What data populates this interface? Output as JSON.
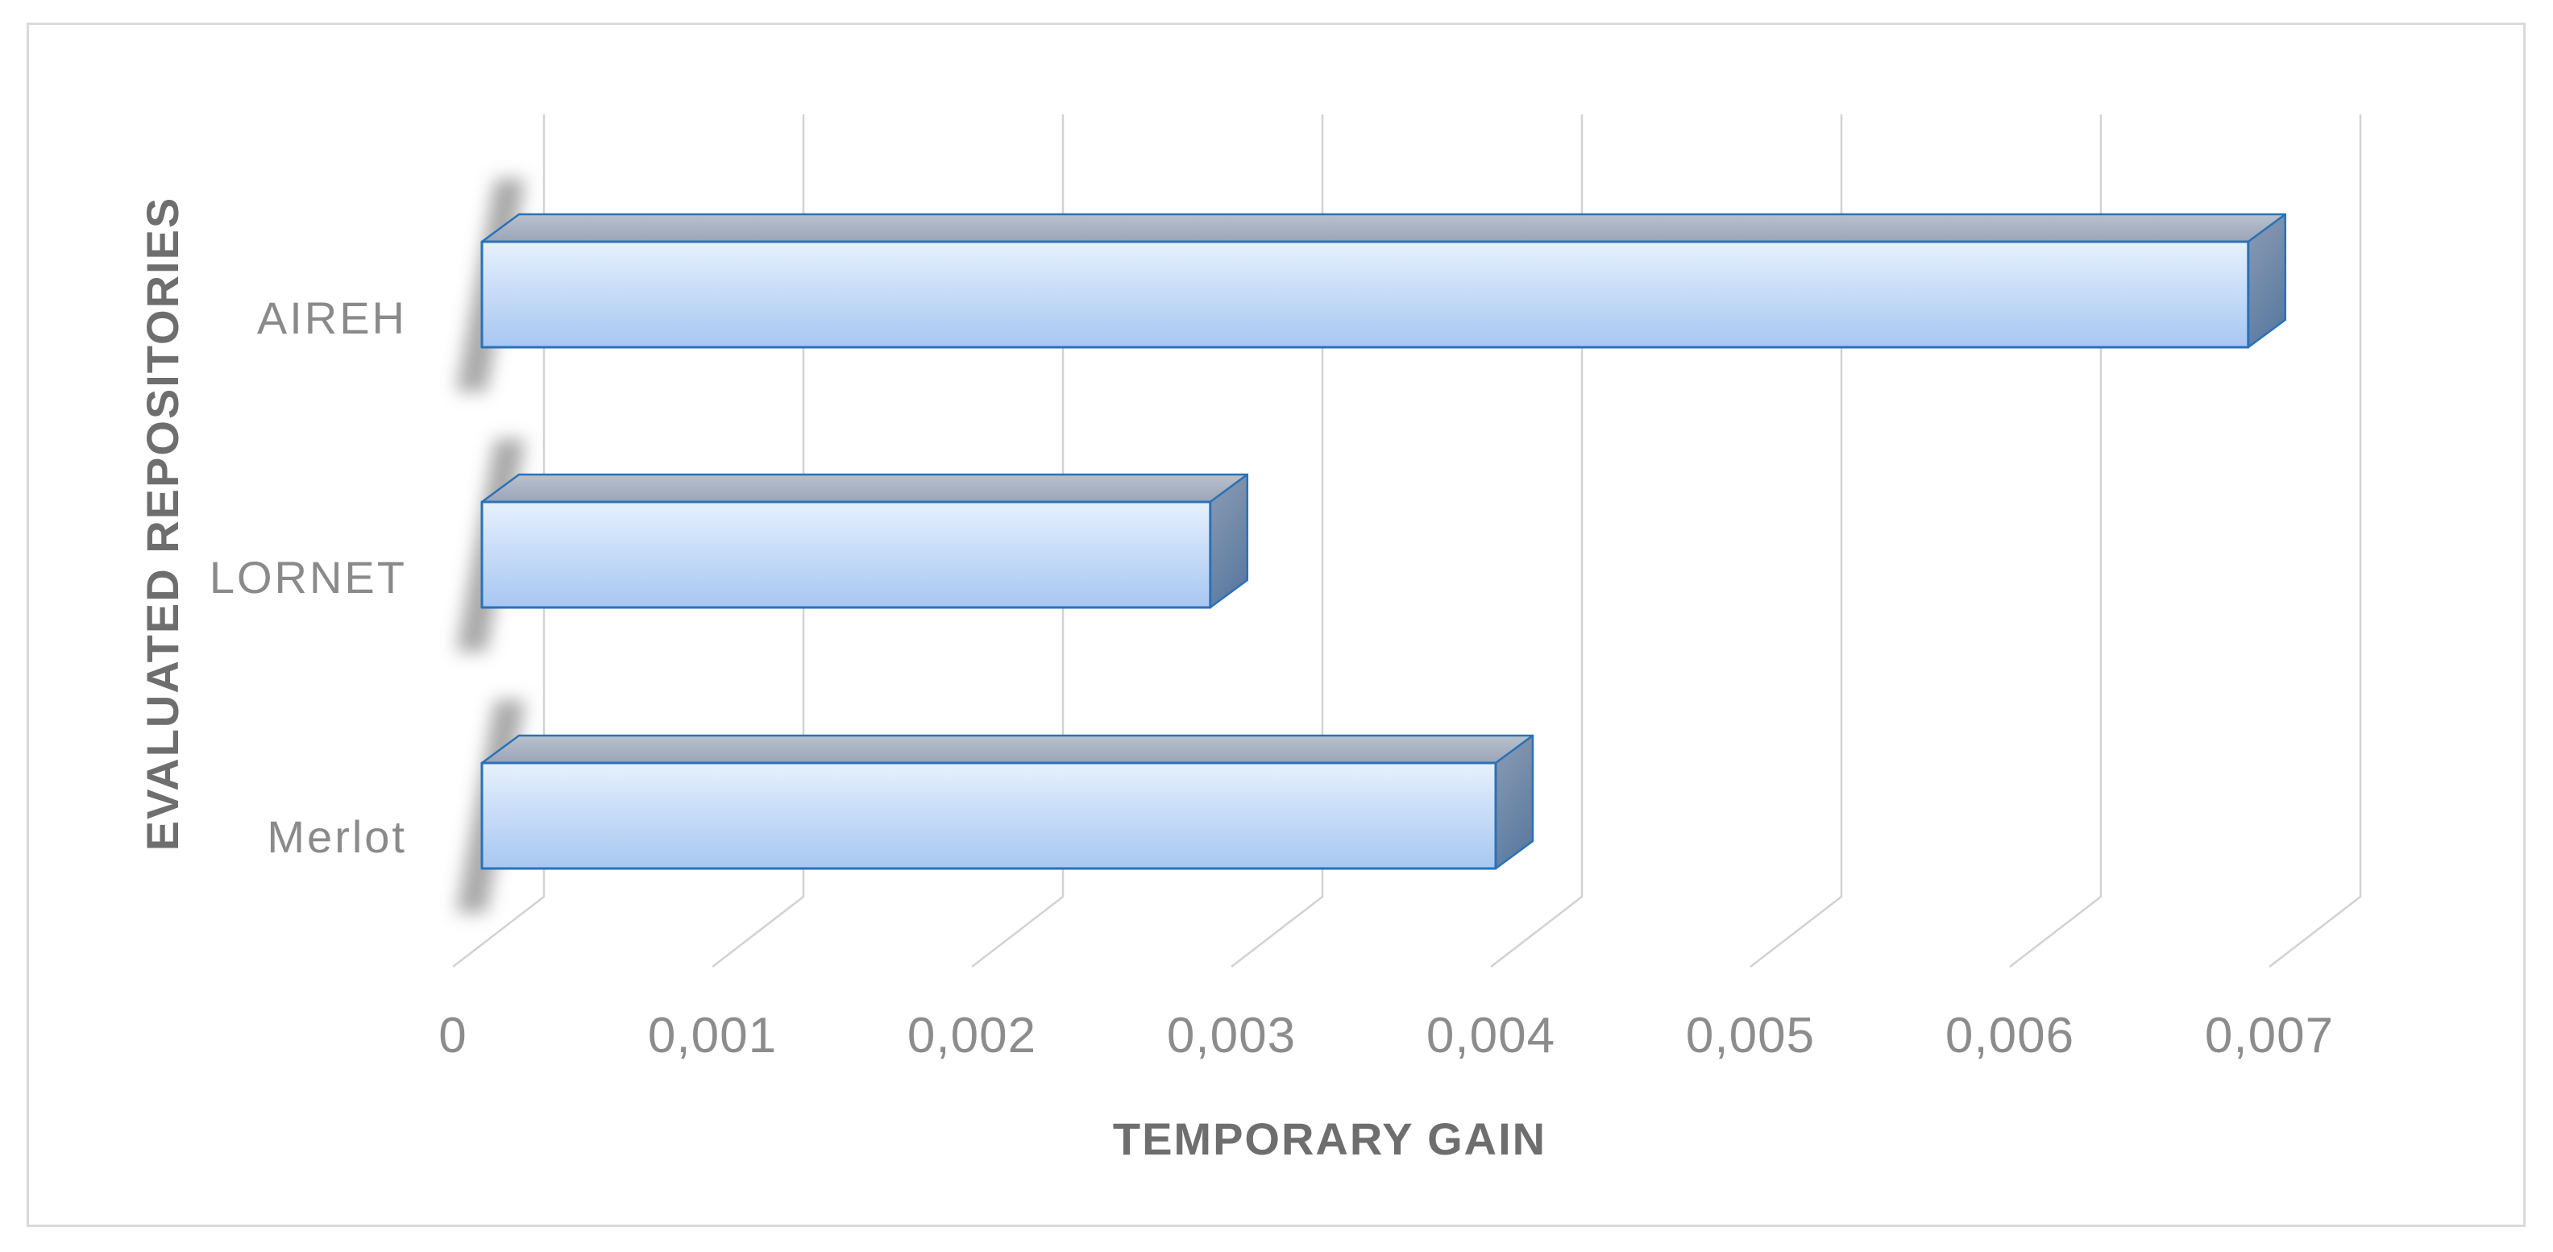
{
  "chart_data": {
    "type": "bar",
    "orientation": "horizontal",
    "style": "3d-box",
    "title": "",
    "categories": [
      "AIREH",
      "LORNET",
      "Merlot"
    ],
    "values": [
      0.0069,
      0.0029,
      0.004
    ],
    "xlabel": "TEMPORARY GAIN",
    "ylabel": "EVALUATED REPOSITORIES",
    "xlim": [
      0,
      0.007
    ],
    "xtick_step": 0.001,
    "xtick_labels": [
      "0",
      "0,001",
      "0,002",
      "0,003",
      "0,004",
      "0,005",
      "0,006",
      "0,007"
    ],
    "decimal_separator": ",",
    "grid": true,
    "legend": false,
    "colors": {
      "bar_front_top": "#e7f1fd",
      "bar_front_mid": "#c9ddf8",
      "bar_front_bottom": "#a8c7f1",
      "bar_top_face_light": "#b9c1cd",
      "bar_top_face_dark": "#9aa5b7",
      "bar_side_face_light": "#8c9cb4",
      "bar_side_face_dark": "#5d7ca1",
      "bar_outline": "#2a72b8",
      "gridline": "#d2d2d2",
      "tick_text": "#8c8c8c",
      "title_text": "#6e6e6e",
      "chart_border": "#dadada",
      "shadow": "#555555",
      "background": "#ffffff"
    }
  }
}
